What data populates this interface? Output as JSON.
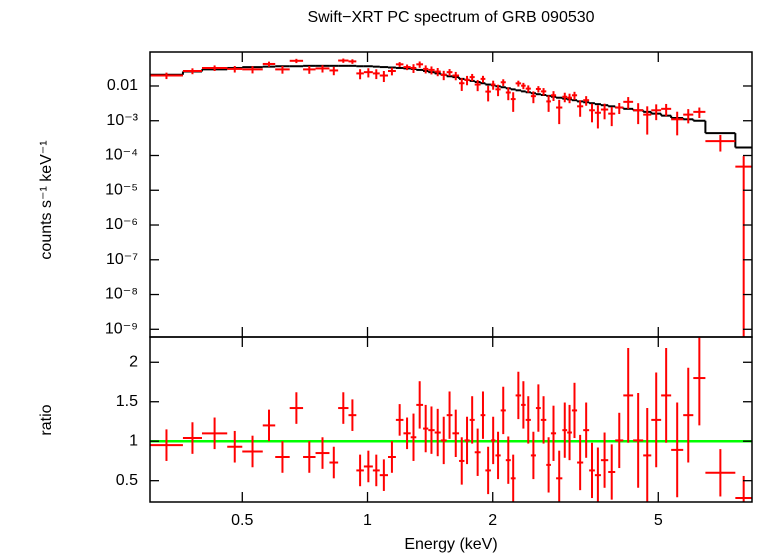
{
  "chart_data": {
    "type": "xspec",
    "title": "Swift−XRT PC spectrum of GRB 090530",
    "xlabel": "Energy (keV)",
    "xscale": "log",
    "xlim": [
      0.3,
      8.4
    ],
    "xticks": [
      0.5,
      1,
      2,
      5
    ],
    "bins": [
      0.3,
      0.36,
      0.4,
      0.46,
      0.5,
      0.56,
      0.6,
      0.65,
      0.7,
      0.75,
      0.81,
      0.85,
      0.9,
      0.94,
      0.98,
      1.03,
      1.07,
      1.12,
      1.17,
      1.22,
      1.27,
      1.31,
      1.36,
      1.4,
      1.45,
      1.5,
      1.55,
      1.6,
      1.66,
      1.71,
      1.76,
      1.81,
      1.87,
      1.92,
      1.98,
      2.03,
      2.09,
      2.15,
      2.21,
      2.27,
      2.34,
      2.4,
      2.47,
      2.54,
      2.61,
      2.69,
      2.76,
      2.84,
      2.94,
      3.02,
      3.1,
      3.19,
      3.3,
      3.41,
      3.52,
      3.64,
      3.79,
      3.94,
      4.12,
      4.35,
      4.6,
      4.81,
      5.08,
      5.37,
      5.74,
      6.07,
      6.49,
      7.66,
      8.4
    ],
    "panels": [
      {
        "ylabel": "counts s⁻¹ keV⁻¹",
        "yscale": "log",
        "ylim": [
          6e-10,
          0.095
        ],
        "yticks": [
          {
            "value": 1e-09,
            "label": "10⁻⁹"
          },
          {
            "value": 1e-08,
            "label": "10⁻⁸"
          },
          {
            "value": 1e-07,
            "label": "10⁻⁷"
          },
          {
            "value": 1e-06,
            "label": "10⁻⁶"
          },
          {
            "value": 1e-05,
            "label": "10⁻⁵"
          },
          {
            "value": 0.0001,
            "label": "10⁻⁴"
          },
          {
            "value": 0.001,
            "label": "10⁻³"
          },
          0.01
        ],
        "data": {
          "color": "#ff0000",
          "values": [
            0.02,
            0.027,
            0.033,
            0.031,
            0.03,
            0.043,
            0.03,
            0.053,
            0.03,
            0.032,
            0.028,
            0.054,
            0.051,
            0.023,
            0.025,
            0.023,
            0.02,
            0.027,
            0.042,
            0.035,
            0.033,
            0.042,
            0.031,
            0.029,
            0.026,
            0.021,
            0.025,
            0.02,
            0.012,
            0.015,
            0.018,
            0.011,
            0.016,
            0.0069,
            0.011,
            0.008,
            0.0128,
            0.0065,
            0.0042,
            0.0119,
            0.0102,
            0.0084,
            0.0051,
            0.0082,
            0.007,
            0.0036,
            0.0054,
            0.0024,
            0.0049,
            0.0046,
            0.0054,
            0.0026,
            0.0039,
            0.002,
            0.0017,
            0.0021,
            0.0016,
            0.0024,
            0.0035,
            0.002,
            0.0015,
            0.002,
            0.0022,
            0.0011,
            0.0015,
            0.0018,
            0.00026,
            4.8e-05
          ],
          "errors": [
            0.0042,
            0.0052,
            0.006,
            0.0066,
            0.007,
            0.0072,
            0.0074,
            0.0074,
            0.0076,
            0.0076,
            0.0076,
            0.0076,
            0.0076,
            0.0074,
            0.0074,
            0.0072,
            0.007,
            0.0068,
            0.0066,
            0.0064,
            0.0093,
            0.0087,
            0.0081,
            0.0075,
            0.0069,
            0.0063,
            0.0057,
            0.0054,
            0.0048,
            0.0045,
            0.0042,
            0.0039,
            0.0036,
            0.0033,
            0.0032,
            0.0029,
            0.0028,
            0.0026,
            0.0024,
            0.0023,
            0.0021,
            0.002,
            0.0019,
            0.0017,
            0.0017,
            0.0018,
            0.0017,
            0.0016,
            0.0015,
            0.0014,
            0.0014,
            0.0013,
            0.0012,
            0.0011,
            0.0011,
            0.001,
            0.0009,
            0.00084,
            0.0013,
            0.0012,
            0.0011,
            0.00096,
            0.00084,
            0.00072,
            0.00066,
            0.0006,
            0.00013,
            4.8e-05
          ]
        },
        "model": {
          "color": "#000000",
          "values": [
            0.021,
            0.026,
            0.03,
            0.033,
            0.035,
            0.036,
            0.037,
            0.037,
            0.038,
            0.038,
            0.038,
            0.038,
            0.038,
            0.037,
            0.037,
            0.036,
            0.035,
            0.034,
            0.033,
            0.032,
            0.031,
            0.029,
            0.027,
            0.025,
            0.023,
            0.021,
            0.019,
            0.018,
            0.016,
            0.015,
            0.014,
            0.013,
            0.012,
            0.011,
            0.0105,
            0.0098,
            0.0092,
            0.0086,
            0.008,
            0.0075,
            0.007,
            0.0066,
            0.0062,
            0.0058,
            0.0055,
            0.0052,
            0.0049,
            0.0046,
            0.0043,
            0.0041,
            0.0039,
            0.0036,
            0.0034,
            0.0032,
            0.003,
            0.0028,
            0.0026,
            0.0024,
            0.0022,
            0.002,
            0.0018,
            0.0016,
            0.0014,
            0.0012,
            0.0011,
            0.001,
            0.00044,
            0.00017
          ]
        }
      },
      {
        "ylabel": "ratio",
        "yscale": "linear",
        "ylim": [
          0.23,
          2.32
        ],
        "yticks": [
          0.5,
          1,
          1.5,
          2
        ],
        "data": {
          "color": "#ff0000",
          "values": [
            0.95,
            1.04,
            1.1,
            0.93,
            0.87,
            1.2,
            0.8,
            1.42,
            0.8,
            0.85,
            0.73,
            1.42,
            1.33,
            0.63,
            0.68,
            0.63,
            0.57,
            0.8,
            1.27,
            1.1,
            1.05,
            1.46,
            1.16,
            1.14,
            1.11,
            1.01,
            1.33,
            1.1,
            0.75,
            1.01,
            1.27,
            0.86,
            1.33,
            0.63,
            1.01,
            0.82,
            1.39,
            0.76,
            0.53,
            1.58,
            1.46,
            1.27,
            0.82,
            1.42,
            1.27,
            0.7,
            1.1,
            0.53,
            1.14,
            1.11,
            1.39,
            0.73,
            1.14,
            0.63,
            0.57,
            0.76,
            0.61,
            1.01,
            1.58,
            1.01,
            0.82,
            1.27,
            1.58,
            0.89,
            1.33,
            1.8,
            0.6,
            0.28
          ],
          "errors": [
            0.2,
            0.2,
            0.2,
            0.2,
            0.2,
            0.2,
            0.2,
            0.2,
            0.2,
            0.2,
            0.2,
            0.2,
            0.2,
            0.2,
            0.2,
            0.2,
            0.2,
            0.2,
            0.2,
            0.2,
            0.3,
            0.3,
            0.3,
            0.3,
            0.3,
            0.3,
            0.3,
            0.3,
            0.3,
            0.3,
            0.3,
            0.3,
            0.3,
            0.3,
            0.3,
            0.3,
            0.3,
            0.3,
            0.3,
            0.3,
            0.3,
            0.3,
            0.3,
            0.3,
            0.3,
            0.35,
            0.35,
            0.35,
            0.35,
            0.35,
            0.35,
            0.35,
            0.35,
            0.35,
            0.35,
            0.35,
            0.35,
            0.35,
            0.6,
            0.6,
            0.6,
            0.6,
            0.6,
            0.6,
            0.6,
            0.6,
            0.3,
            0.28
          ]
        },
        "reference": {
          "color": "#00ff00",
          "value": 1
        }
      }
    ]
  }
}
